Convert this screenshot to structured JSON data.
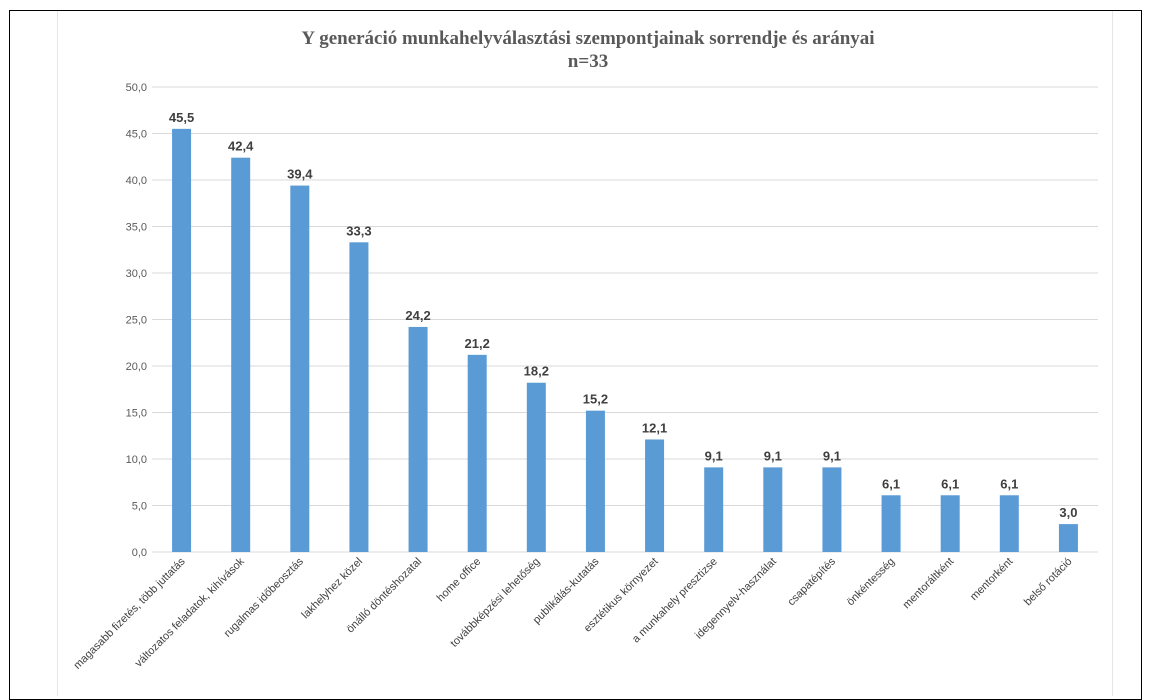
{
  "chart_data": {
    "type": "bar",
    "title": "Y generáció munkahelyválasztási szempontjainak sorrendje és arányai",
    "subtitle": "n=33",
    "xlabel": "",
    "ylabel": "",
    "ylim": [
      0,
      50
    ],
    "yticks": [
      "0,0",
      "5,0",
      "10,0",
      "15,0",
      "20,0",
      "25,0",
      "30,0",
      "35,0",
      "40,0",
      "45,0",
      "50,0"
    ],
    "grid": true,
    "bar_color": "#5b9bd5",
    "categories": [
      "magasabb fizetés, több juttatás",
      "változatos feladatok, kihívások",
      "rugalmas időbeosztás",
      "lakhelyhez közel",
      "önálló döntéshozatal",
      "home office",
      "továbbképzési lehetőség",
      "publikálás-kutatás",
      "esztétikus környezet",
      "a munkahely presztizse",
      "idegennyelv-használat",
      "csapatépítés",
      "önkéntesség",
      "mentoráltként",
      "mentorként",
      "belső rotáció"
    ],
    "values": [
      45.5,
      42.4,
      39.4,
      33.3,
      24.2,
      21.2,
      18.2,
      15.2,
      12.1,
      9.1,
      9.1,
      9.1,
      6.1,
      6.1,
      6.1,
      3.0
    ],
    "data_labels": [
      "45,5",
      "42,4",
      "39,4",
      "33,3",
      "24,2",
      "21,2",
      "18,2",
      "15,2",
      "12,1",
      "9,1",
      "9,1",
      "9,1",
      "6,1",
      "6,1",
      "6,1",
      "3,0"
    ]
  }
}
